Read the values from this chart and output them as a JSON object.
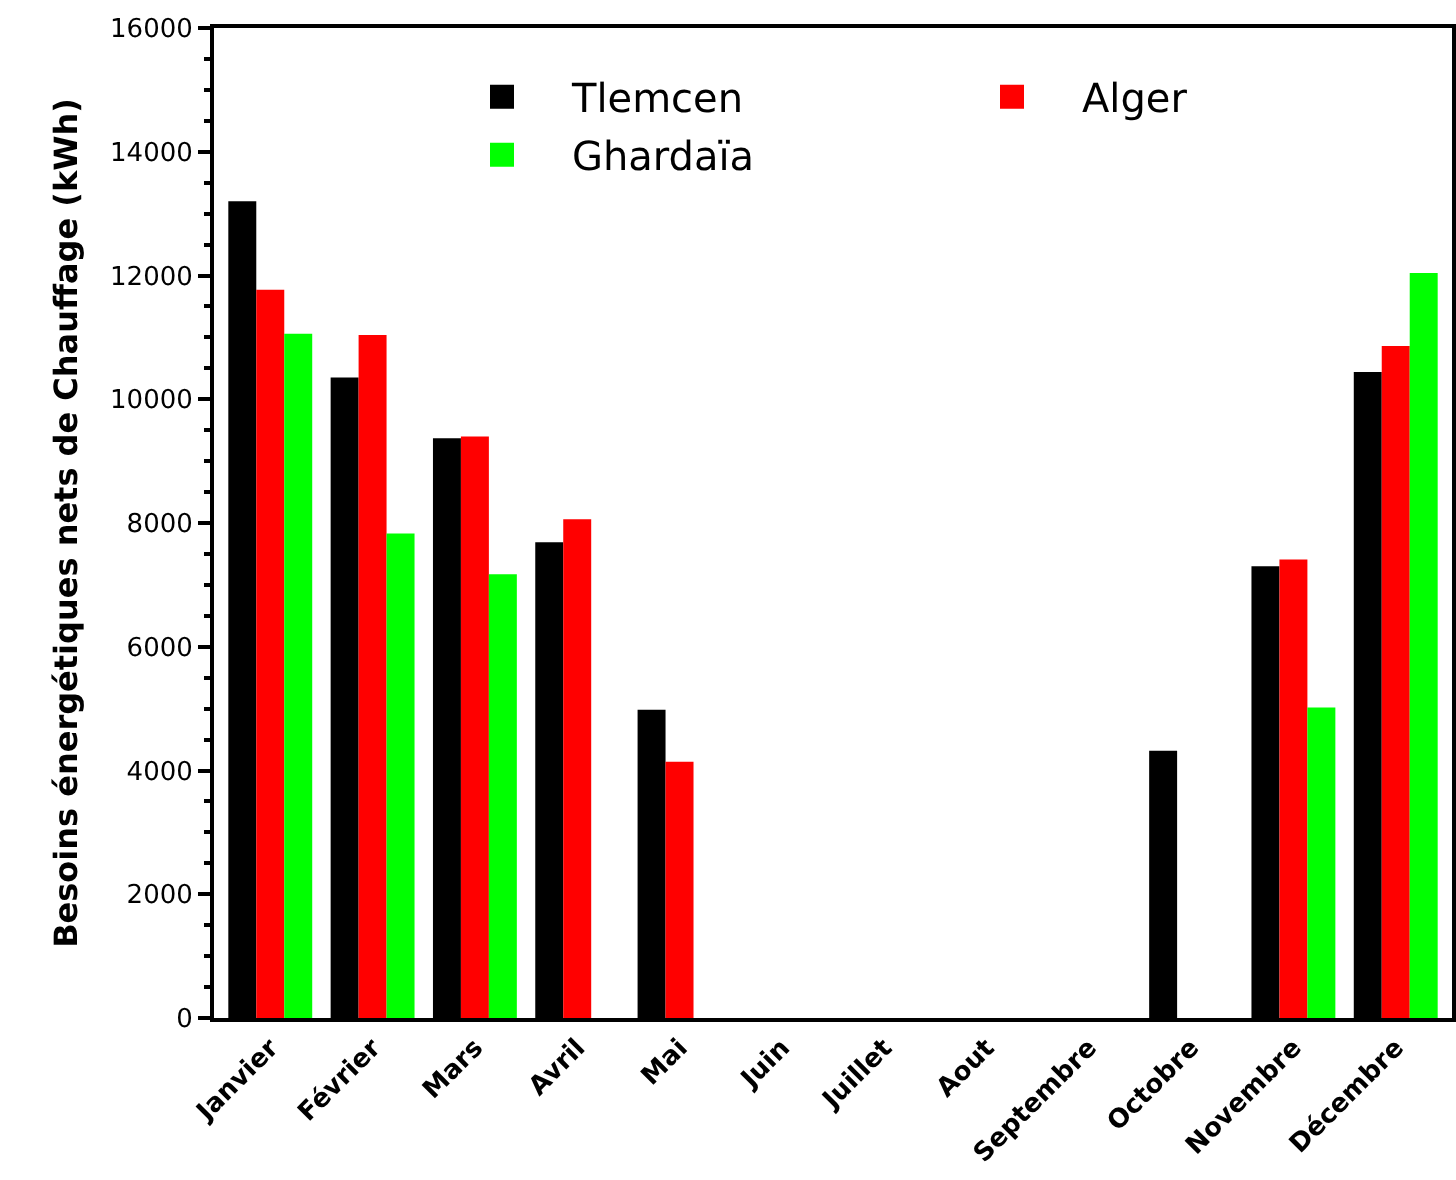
{
  "chart_data": {
    "type": "bar",
    "ylabel": "Besoins énergétiques nets de Chauffage (kWh)",
    "categories": [
      "Janvier",
      "Février",
      "Mars",
      "Avril",
      "Mai",
      "Juin",
      "Juillet",
      "Aout",
      "Septembre",
      "Octobre",
      "Novembre",
      "Décembre"
    ],
    "series": [
      {
        "name": "Tlemcen",
        "color": "#000000",
        "values": [
          13200,
          10350,
          9370,
          7690,
          4980,
          0,
          0,
          0,
          0,
          4320,
          7300,
          10440
        ]
      },
      {
        "name": "Alger",
        "color": "#ff0000",
        "values": [
          11770,
          11040,
          9400,
          8060,
          4140,
          0,
          0,
          0,
          0,
          0,
          7410,
          10860
        ]
      },
      {
        "name": "Ghardaïa",
        "color": "#00ff00",
        "values": [
          11060,
          7830,
          7170,
          0,
          0,
          0,
          0,
          0,
          0,
          0,
          5020,
          12040
        ]
      }
    ],
    "ylim": [
      0,
      16000
    ],
    "yticks": [
      0,
      2000,
      4000,
      6000,
      8000,
      10000,
      12000,
      14000,
      16000
    ],
    "grid": false,
    "legend": "top right"
  }
}
